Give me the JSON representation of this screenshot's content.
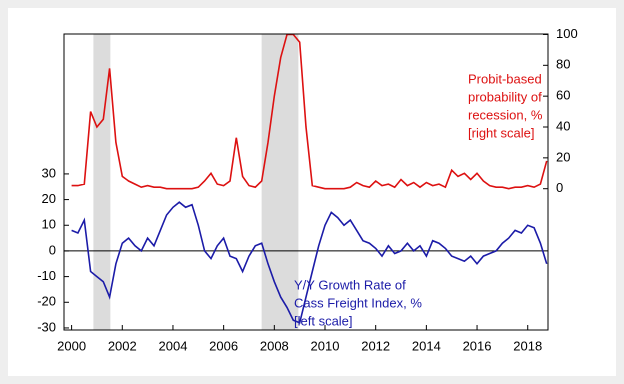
{
  "chart_data": {
    "type": "line",
    "x": [
      2000,
      2000.25,
      2000.5,
      2000.75,
      2001,
      2001.25,
      2001.5,
      2001.75,
      2002,
      2002.25,
      2002.5,
      2002.75,
      2003,
      2003.25,
      2003.5,
      2003.75,
      2004,
      2004.25,
      2004.5,
      2004.75,
      2005,
      2005.25,
      2005.5,
      2005.75,
      2006,
      2006.25,
      2006.5,
      2006.75,
      2007,
      2007.25,
      2007.5,
      2007.75,
      2008,
      2008.25,
      2008.5,
      2008.75,
      2009,
      2009.25,
      2009.5,
      2009.75,
      2010,
      2010.25,
      2010.5,
      2010.75,
      2011,
      2011.25,
      2011.5,
      2011.75,
      2012,
      2012.25,
      2012.5,
      2012.75,
      2013,
      2013.25,
      2013.5,
      2013.75,
      2014,
      2014.25,
      2014.5,
      2014.75,
      2015,
      2015.25,
      2015.5,
      2015.75,
      2016,
      2016.25,
      2016.5,
      2016.75,
      2017,
      2017.25,
      2017.5,
      2017.75,
      2018,
      2018.25,
      2018.5,
      2018.75
    ],
    "series": [
      {
        "name": "Y/Y Growth Rate of Cass Freight Index, %",
        "color": "#1c1ca8",
        "axis": "y",
        "values": [
          8,
          7,
          12,
          -8,
          -10,
          -12,
          -18,
          -5,
          3,
          5,
          2,
          0,
          5,
          2,
          8,
          14,
          17,
          19,
          17,
          18,
          10,
          0,
          -3,
          2,
          5,
          -2,
          -3,
          -8,
          -2,
          2,
          3,
          -5,
          -12,
          -18,
          -22,
          -27,
          -28,
          -18,
          -8,
          2,
          10,
          15,
          13,
          10,
          12,
          8,
          4,
          3,
          1,
          -2,
          2,
          -1,
          0,
          3,
          0,
          2,
          -2,
          4,
          3,
          1,
          -2,
          -3,
          -4,
          -2,
          -5,
          -2,
          -1,
          0,
          3,
          5,
          8,
          7,
          10,
          9,
          3,
          -5
        ]
      },
      {
        "name": "Probit-based probability of recession, %",
        "color": "#dd1111",
        "axis": "y2",
        "values": [
          2,
          2,
          3,
          50,
          40,
          45,
          78,
          30,
          8,
          5,
          3,
          1,
          2,
          1,
          1,
          0,
          0,
          0,
          0,
          0,
          1,
          5,
          10,
          3,
          2,
          5,
          33,
          8,
          2,
          1,
          5,
          30,
          60,
          85,
          100,
          100,
          95,
          40,
          2,
          1,
          0,
          0,
          0,
          0,
          1,
          4,
          2,
          1,
          5,
          2,
          3,
          1,
          6,
          2,
          4,
          1,
          4,
          2,
          3,
          1,
          12,
          8,
          10,
          6,
          10,
          5,
          2,
          1,
          1,
          0,
          1,
          1,
          2,
          1,
          3,
          18
        ]
      }
    ],
    "recessions": [
      [
        2000.86,
        2001.53
      ],
      [
        2007.5,
        2008.95
      ]
    ],
    "xlim": [
      1999.7,
      2018.8
    ],
    "xticks": [
      2000,
      2002,
      2004,
      2006,
      2008,
      2010,
      2012,
      2014,
      2016,
      2018
    ],
    "ylim": [
      -30.8,
      84.5
    ],
    "yticks": [
      -30,
      -20,
      -10,
      0,
      10,
      20,
      30
    ],
    "y2lim": [
      -91.6,
      100.3
    ],
    "y2ticks": [
      0,
      20,
      40,
      60,
      80,
      100
    ],
    "annotations": [
      {
        "lines": [
          "Probit-based",
          "probability of",
          "recession, %",
          "[right scale]"
        ],
        "color": "#dd1111"
      },
      {
        "lines": [
          "Y/Y Growth Rate of",
          "Cass Freight Index, %",
          "[left scale]"
        ],
        "color": "#1c1ca8"
      }
    ]
  }
}
